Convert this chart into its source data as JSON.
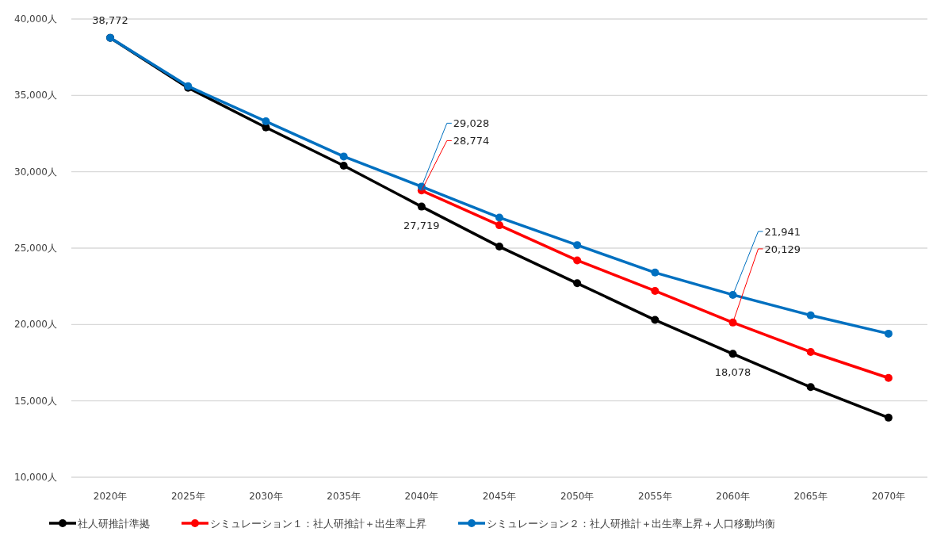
{
  "chart_data": {
    "type": "line",
    "categories": [
      "2020年",
      "2025年",
      "2030年",
      "2035年",
      "2040年",
      "2045年",
      "2050年",
      "2055年",
      "2060年",
      "2065年",
      "2070年"
    ],
    "series": [
      {
        "name": "社人研推計準拠",
        "color": "#000000",
        "values": [
          38772,
          35500,
          32900,
          30400,
          27719,
          25100,
          22700,
          20300,
          18078,
          15900,
          13900
        ],
        "value_labels": [
          "38,772",
          null,
          null,
          null,
          "27,719",
          null,
          null,
          null,
          "18,078",
          null,
          null
        ]
      },
      {
        "name": "シミュレーション１：社人研推計＋出生率上昇",
        "color": "#ff0000",
        "values": [
          null,
          null,
          null,
          null,
          28774,
          26500,
          24200,
          22200,
          20129,
          18200,
          16500
        ],
        "value_labels": [
          null,
          null,
          null,
          null,
          "28,774",
          null,
          null,
          null,
          "20,129",
          null,
          null
        ]
      },
      {
        "name": "シミュレーション２：社人研推計＋出生率上昇＋人口移動均衡",
        "color": "#0070c0",
        "values": [
          38772,
          35600,
          33300,
          31000,
          29028,
          27000,
          25200,
          23400,
          21941,
          20600,
          19400
        ],
        "value_labels": [
          null,
          null,
          null,
          null,
          "29,028",
          null,
          null,
          null,
          "21,941",
          null,
          null
        ]
      }
    ],
    "ylim": [
      10000,
      40000
    ],
    "yticks": [
      {
        "value": 10000,
        "label": "10,000人"
      },
      {
        "value": 15000,
        "label": "15,000人"
      },
      {
        "value": 20000,
        "label": "20,000人"
      },
      {
        "value": 25000,
        "label": "25,000人"
      },
      {
        "value": 30000,
        "label": "30,000人"
      },
      {
        "value": 35000,
        "label": "35,000人"
      },
      {
        "value": 40000,
        "label": "40,000人"
      }
    ],
    "grid": "y",
    "legend": "bottom",
    "marker": "circle",
    "line_style": "solid"
  }
}
